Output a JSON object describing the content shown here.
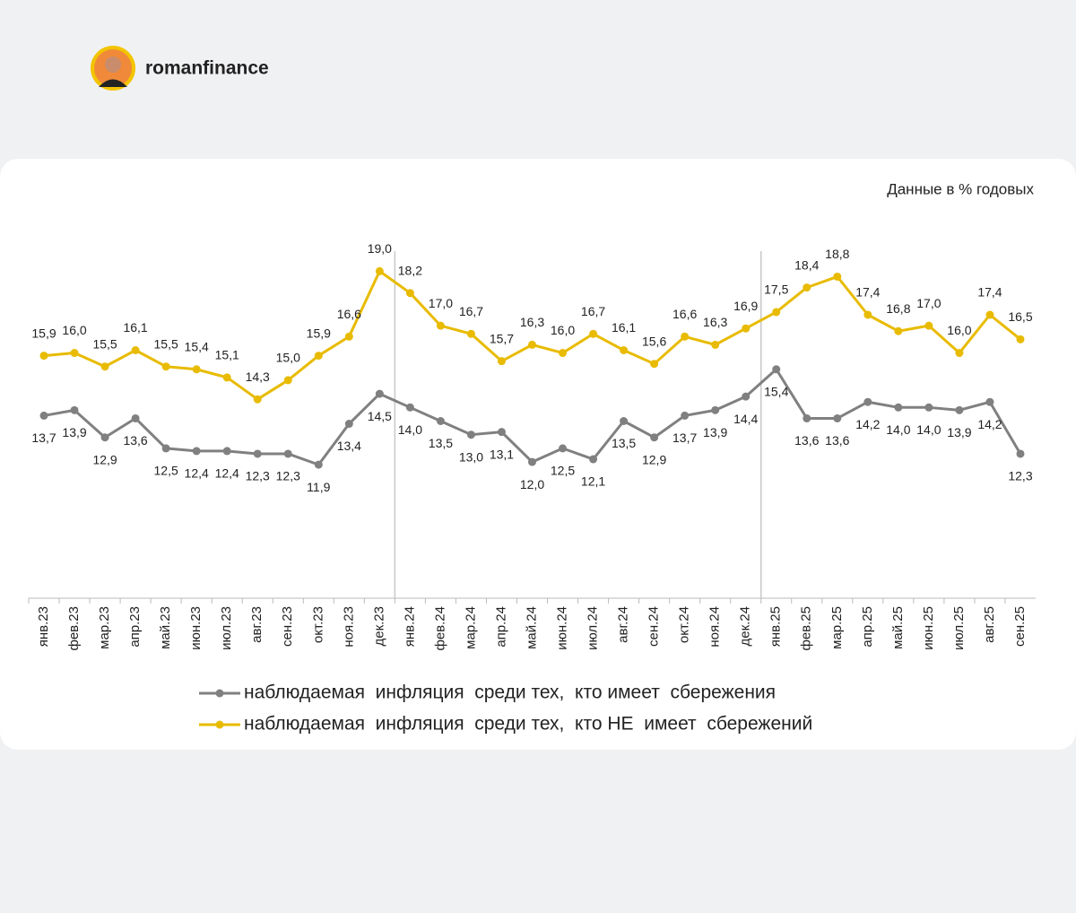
{
  "header": {
    "author": "romanfinance"
  },
  "chart_data": {
    "type": "line",
    "subtitle": "Данные в % годовых",
    "categories": [
      "янв.23",
      "фев.23",
      "мар.23",
      "апр.23",
      "май.23",
      "июн.23",
      "июл.23",
      "авг.23",
      "сен.23",
      "окт.23",
      "ноя.23",
      "дек.23",
      "янв.24",
      "фев.24",
      "мар.24",
      "апр.24",
      "май.24",
      "июн.24",
      "июл.24",
      "авг.24",
      "сен.24",
      "окт.24",
      "ноя.24",
      "дек.24",
      "янв.25",
      "фев.25",
      "мар.25",
      "апр.25",
      "май.25",
      "июн.25",
      "июл.25",
      "авг.25",
      "сен.25"
    ],
    "series": [
      {
        "name": "наблюдаемая  инфляция  среди тех,  кто имеет  сбережения",
        "color": "#808080",
        "label_position": "below",
        "values": [
          13.7,
          13.9,
          12.9,
          13.6,
          12.5,
          12.4,
          12.4,
          12.3,
          12.3,
          11.9,
          13.4,
          14.5,
          14.0,
          13.5,
          13.0,
          13.1,
          12.0,
          12.5,
          12.1,
          13.5,
          12.9,
          13.7,
          13.9,
          14.4,
          15.4,
          13.6,
          13.6,
          14.2,
          14.0,
          14.0,
          13.9,
          14.2,
          12.3
        ],
        "value_labels": [
          "13,7",
          "13,9",
          "12,9",
          "13,6",
          "12,5",
          "12,4",
          "12,4",
          "12,3",
          "12,3",
          "11,9",
          "13,4",
          "14,5",
          "14,0",
          "13,5",
          "13,0",
          "13,1",
          "12,0",
          "12,5",
          "12,1",
          "13,5",
          "12,9",
          "13,7",
          "13,9",
          "14,4",
          "15,4",
          "13,6",
          "13,6",
          "14,2",
          "14,0",
          "14,0",
          "13,9",
          "14,2",
          "12,3"
        ]
      },
      {
        "name": "наблюдаемая  инфляция  среди тех,  кто НЕ  имеет  сбережений",
        "color": "#e8bb00",
        "label_position": "above",
        "values": [
          15.9,
          16.0,
          15.5,
          16.1,
          15.5,
          15.4,
          15.1,
          14.3,
          15.0,
          15.9,
          16.6,
          19.0,
          18.2,
          17.0,
          16.7,
          15.7,
          16.3,
          16.0,
          16.7,
          16.1,
          15.6,
          16.6,
          16.3,
          16.9,
          17.5,
          18.4,
          18.8,
          17.4,
          16.8,
          17.0,
          16.0,
          17.4,
          16.5
        ],
        "value_labels": [
          "15,9",
          "16,0",
          "15,5",
          "16,1",
          "15,5",
          "15,4",
          "15,1",
          "14,3",
          "15,0",
          "15,9",
          "16,6",
          "19,0",
          "18,2",
          "17,0",
          "16,7",
          "15,7",
          "16,3",
          "16,0",
          "16,7",
          "16,1",
          "15,6",
          "16,6",
          "16,3",
          "16,9",
          "17,5",
          "18,4",
          "18,8",
          "17,4",
          "16,8",
          "17,0",
          "16,0",
          "17,4",
          "16,5"
        ]
      }
    ],
    "ylim": [
      7,
      20
    ]
  }
}
